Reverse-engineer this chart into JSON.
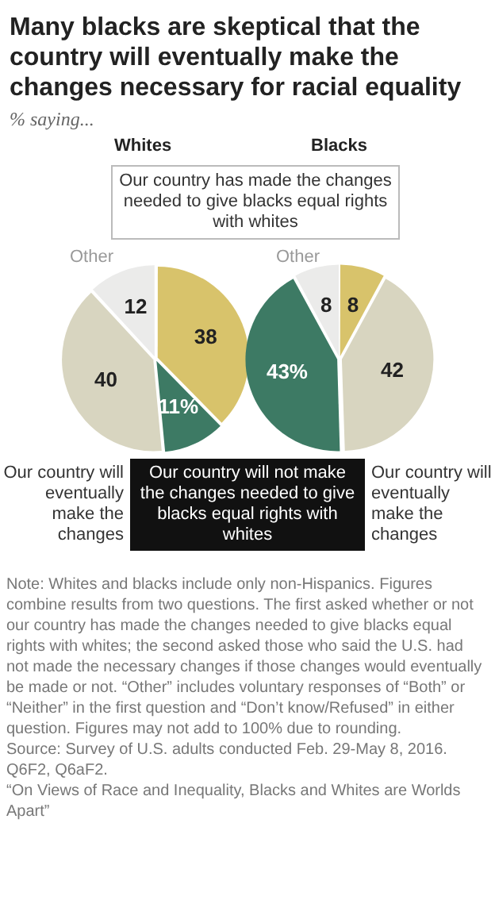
{
  "chart_data": [
    {
      "type": "pie",
      "title": "Many blacks are skeptical that the country will eventually make the changes necessary for racial equality",
      "subtitle": "% saying...",
      "annotations": [
        "Whites"
      ],
      "categories": [
        "Our country has made the changes needed to give blacks equal rights with whites",
        "Our country will not make the changes needed to give blacks equal rights with whites",
        "Our country will eventually make the changes",
        "Other"
      ],
      "values": [
        38,
        11,
        40,
        12
      ],
      "colors": [
        "#d8c36b",
        "#3d7a64",
        "#d8d5c0",
        "#ebebea"
      ],
      "value_labels": [
        "38",
        "11%",
        "40",
        "12"
      ]
    },
    {
      "type": "pie",
      "title": "Blacks",
      "annotations": [
        "Note: Whites and blacks include only non-Hispanics. Figures combine results from two questions. The first asked whether or not our country has made the changes needed to give blacks equal rights with whites; the second asked those who said the U.S. had not made the necessary changes if those changes would eventually be made or not. “Other” includes voluntary responses of “Both” or “Neither” in the first question and “Don’t know/Refused” in either question. Figures may not add to 100% due to rounding.",
        "Source: Survey of U.S. adults conducted Feb. 29-May 8, 2016. Q6F2, Q6aF2.",
        "“On Views of Race and Inequality, Blacks and Whites are Worlds Apart”"
      ],
      "categories": [
        null,
        "Our country will eventually make the changes",
        null,
        "Other"
      ],
      "values": [
        8,
        42,
        43,
        8
      ],
      "colors": [
        "#d8c36b",
        "#d8d5c0",
        "#3d7a64",
        "#ebebea"
      ],
      "value_labels": [
        "8",
        "42",
        "43%",
        "8"
      ]
    }
  ]
}
